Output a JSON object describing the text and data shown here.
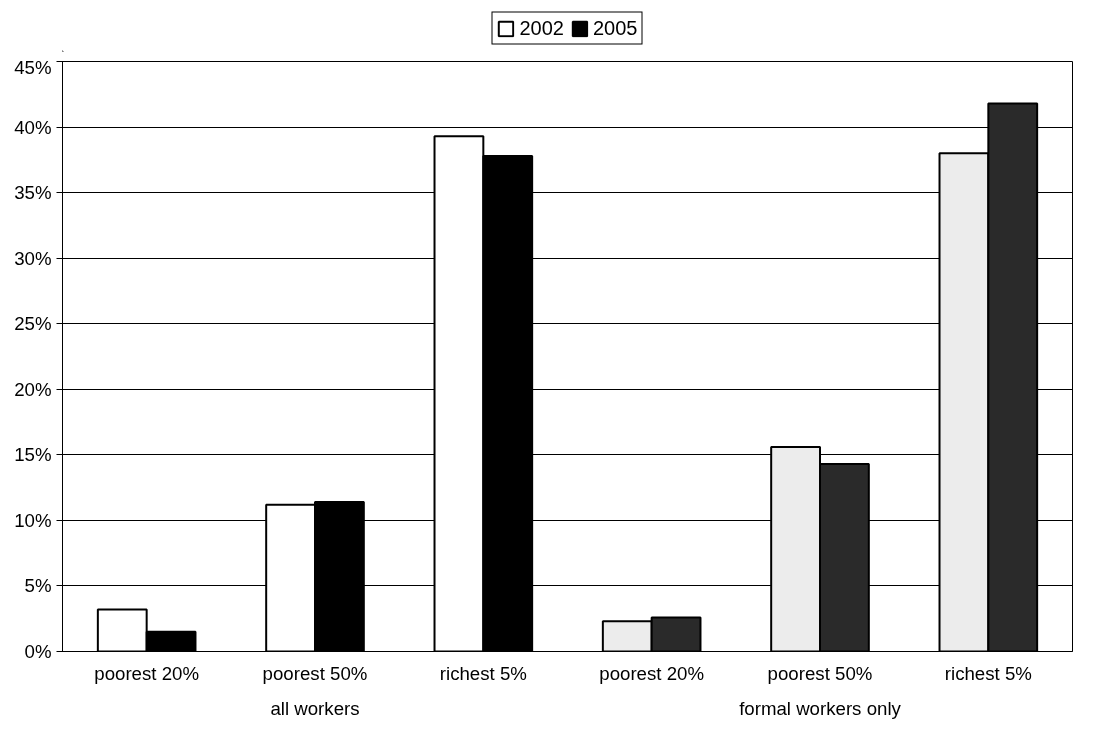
{
  "chart_data": {
    "type": "bar",
    "categories": [
      "poorest 20%",
      "poorest 50%",
      "richest 5%",
      "poorest 20%",
      "poorest 50%",
      "richest 5%"
    ],
    "annotations": [
      "all workers",
      "formal workers only"
    ],
    "series": [
      {
        "name": "2002",
        "colors": [
          "#ffffff",
          "#ffffff",
          "#ffffff",
          "#ececec",
          "#ececec",
          "#ececec"
        ],
        "values": [
          3.2,
          11.2,
          39.3,
          2.3,
          15.6,
          38.0
        ]
      },
      {
        "name": "2005",
        "colors": [
          "#000000",
          "#000000",
          "#000000",
          "#2a2a2a",
          "#2a2a2a",
          "#2a2a2a"
        ],
        "values": [
          1.5,
          11.4,
          37.8,
          2.6,
          14.3,
          41.8
        ]
      }
    ],
    "ylim": [
      0,
      45
    ],
    "yticks": [
      {
        "value": 0,
        "label": "0%"
      },
      {
        "value": 5,
        "label": "5%"
      },
      {
        "value": 10,
        "label": "10%"
      },
      {
        "value": 15,
        "label": "15%"
      },
      {
        "value": 20,
        "label": "20%"
      },
      {
        "value": 25,
        "label": "25%"
      },
      {
        "value": 30,
        "label": "30%"
      },
      {
        "value": 35,
        "label": "35%"
      },
      {
        "value": 40,
        "label": "40%"
      },
      {
        "value": 45,
        "label": "45%"
      }
    ],
    "grid": "y",
    "legend": "top"
  }
}
